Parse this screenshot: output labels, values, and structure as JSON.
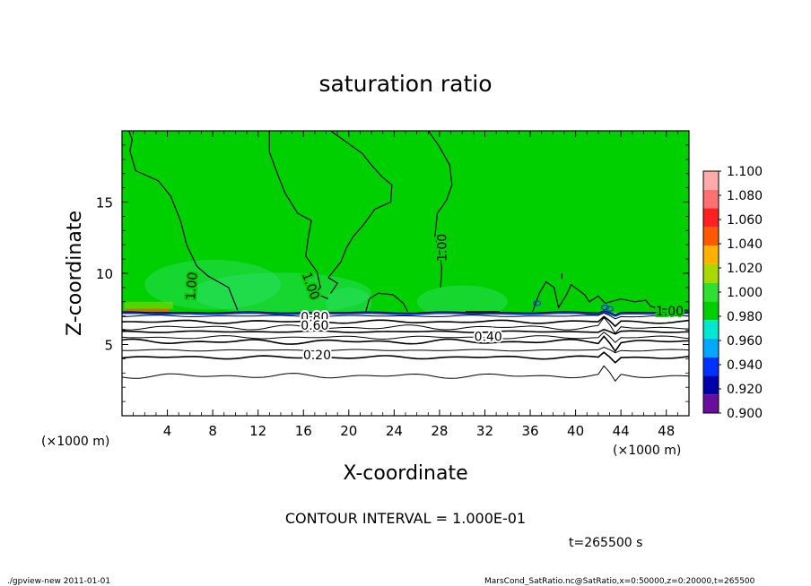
{
  "chart_data": {
    "type": "contour",
    "title": "saturation ratio",
    "xlabel": "X-coordinate",
    "ylabel": "Z-coordinate",
    "x_unit": "(×1000 m)",
    "y_unit": "(×1000 m)",
    "xlim": [
      0,
      50
    ],
    "ylim": [
      0,
      20
    ],
    "x_ticks": [
      4,
      8,
      12,
      16,
      20,
      24,
      28,
      32,
      36,
      40,
      44,
      48
    ],
    "y_ticks": [
      5,
      10,
      15
    ],
    "field": {
      "surface_level_z": 7.2,
      "upper_value": 1.0,
      "lower_bands": [
        {
          "z": 7.0,
          "value": 0.9
        },
        {
          "z": 6.6,
          "value": 0.8
        },
        {
          "z": 6.2,
          "value": 0.7
        },
        {
          "z": 5.9,
          "value": 0.6
        },
        {
          "z": 5.5,
          "value": 0.5
        },
        {
          "z": 5.2,
          "value": 0.4
        },
        {
          "z": 4.6,
          "value": 0.3
        },
        {
          "z": 4.1,
          "value": 0.2
        },
        {
          "z": 2.8,
          "value": 0.1
        }
      ]
    },
    "contour_labels": [
      {
        "text": "1.00",
        "x": 6.2,
        "z": 9.1,
        "angle": -85
      },
      {
        "text": "1.00",
        "x": 16.6,
        "z": 9.1,
        "angle": 70
      },
      {
        "text": "1.00",
        "x": 28.3,
        "z": 11.8,
        "angle": -90
      },
      {
        "text": "1.00",
        "x": 48.3,
        "z": 7.3,
        "angle": 0
      },
      {
        "text": "0.80",
        "x": 17.0,
        "z": 6.9,
        "angle": 0
      },
      {
        "text": "0.60",
        "x": 17.0,
        "z": 6.3,
        "angle": 0
      },
      {
        "text": "0.40",
        "x": 32.3,
        "z": 5.5,
        "angle": 0
      },
      {
        "text": "0.20",
        "x": 17.2,
        "z": 4.2,
        "angle": 0
      }
    ],
    "colorbar": {
      "levels": [
        "0.900",
        "0.920",
        "0.940",
        "0.960",
        "0.980",
        "1.000",
        "1.020",
        "1.040",
        "1.060",
        "1.080",
        "1.100"
      ],
      "colors": [
        "#6a0d9e",
        "#0000a8",
        "#0032ff",
        "#00a8ff",
        "#00e8d0",
        "#00d000",
        "#30e030",
        "#a8d800",
        "#ffb000",
        "#ff5a00",
        "#ff2020",
        "#ff7070",
        "#ffaaaa"
      ]
    },
    "contour_interval_text": "CONTOUR INTERVAL = 1.000E-01",
    "time_text": "t=265500 s"
  },
  "footer": {
    "left": "./gpview-new   2011-01-01",
    "right": "MarsCond_SatRatio.nc@SatRatio,x=0:50000,z=0:20000,t=265500"
  }
}
